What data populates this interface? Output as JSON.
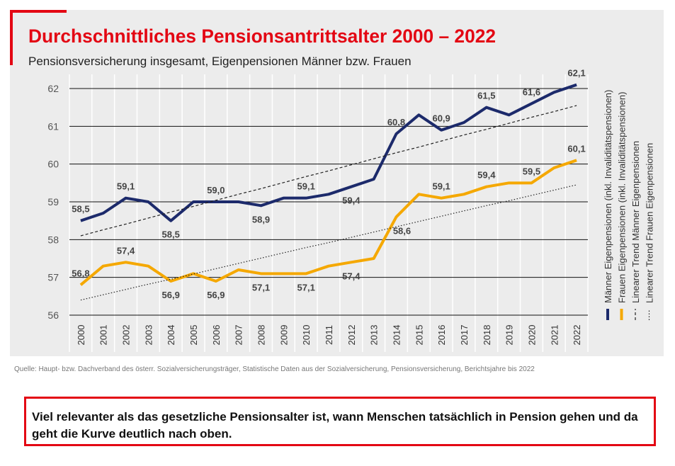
{
  "chart_data": {
    "type": "line",
    "title": "Durchschnittliches Pensionsantrittsalter 2000 – 2022",
    "subtitle": "Pensionsversicherung insgesamt, Eigenpensionen Männer bzw. Frauen",
    "categories": [
      "2000",
      "2001",
      "2002",
      "2003",
      "2004",
      "2005",
      "2006",
      "2007",
      "2008",
      "2009",
      "2010",
      "2011",
      "2012",
      "2013",
      "2014",
      "2015",
      "2016",
      "2017",
      "2018",
      "2019",
      "2020",
      "2021",
      "2022"
    ],
    "ylim": [
      56,
      62
    ],
    "yticks": [
      56,
      57,
      58,
      59,
      60,
      61,
      62
    ],
    "grid": true,
    "series": [
      {
        "name": "Männer Eigenpensionen (inkl. Invaliditätspensionen)",
        "color": "#1c2a6b",
        "style": "solid",
        "values": [
          58.5,
          58.7,
          59.1,
          59.0,
          58.5,
          59.0,
          59.0,
          59.0,
          58.9,
          59.1,
          59.1,
          59.2,
          59.4,
          59.6,
          60.8,
          61.3,
          60.9,
          61.1,
          61.5,
          61.3,
          61.6,
          61.9,
          62.1
        ],
        "value_labels": [
          "58,5",
          null,
          "59,1",
          null,
          "58,5",
          null,
          "59,0",
          null,
          "58,9",
          null,
          "59,1",
          null,
          "59,4",
          null,
          "60,8",
          null,
          "60,9",
          null,
          "61,5",
          null,
          "61,6",
          null,
          "62,1"
        ]
      },
      {
        "name": "Frauen Eigenpensionen (inkl. Invaliditätspensionen)",
        "color": "#f5a800",
        "style": "solid",
        "values": [
          56.8,
          57.3,
          57.4,
          57.3,
          56.9,
          57.1,
          56.9,
          57.2,
          57.1,
          57.1,
          57.1,
          57.3,
          57.4,
          57.5,
          58.6,
          59.2,
          59.1,
          59.2,
          59.4,
          59.5,
          59.5,
          59.9,
          60.1
        ],
        "value_labels": [
          "56,8",
          null,
          "57,4",
          null,
          "56,9",
          null,
          "56,9",
          null,
          "57,1",
          null,
          "57,1",
          null,
          "57,4",
          null,
          "58,6",
          null,
          "59,1",
          null,
          "59,4",
          null,
          "59,5",
          null,
          "60,1"
        ]
      },
      {
        "name": "Linearer Trend Männer Eigenpensionen",
        "color": "#222222",
        "style": "dashed",
        "values": [
          58.1,
          58.26,
          58.41,
          58.57,
          58.73,
          58.88,
          59.04,
          59.2,
          59.35,
          59.51,
          59.67,
          59.82,
          59.98,
          60.14,
          60.3,
          60.45,
          60.61,
          60.77,
          60.92,
          61.08,
          61.24,
          61.39,
          61.55
        ]
      },
      {
        "name": "Linearer Trend Frauen Eigenpensionen",
        "color": "#222222",
        "style": "dotted",
        "values": [
          56.4,
          56.54,
          56.68,
          56.82,
          56.95,
          57.09,
          57.23,
          57.37,
          57.51,
          57.65,
          57.79,
          57.92,
          58.06,
          58.2,
          58.34,
          58.48,
          58.62,
          58.76,
          58.9,
          59.03,
          59.17,
          59.31,
          59.45
        ]
      }
    ]
  },
  "source": "Quelle: Haupt- bzw. Dachverband des österr. Sozialversicherungsträger, Statistische Daten aus der Sozialversicherung, Pensionsversicherung, Berichtsjahre bis 2022",
  "note": "Viel relevanter als das gesetzliche Pensionsalter ist, wann Menschen tatsächlich in Pension gehen und da geht die Kurve deutlich nach oben."
}
